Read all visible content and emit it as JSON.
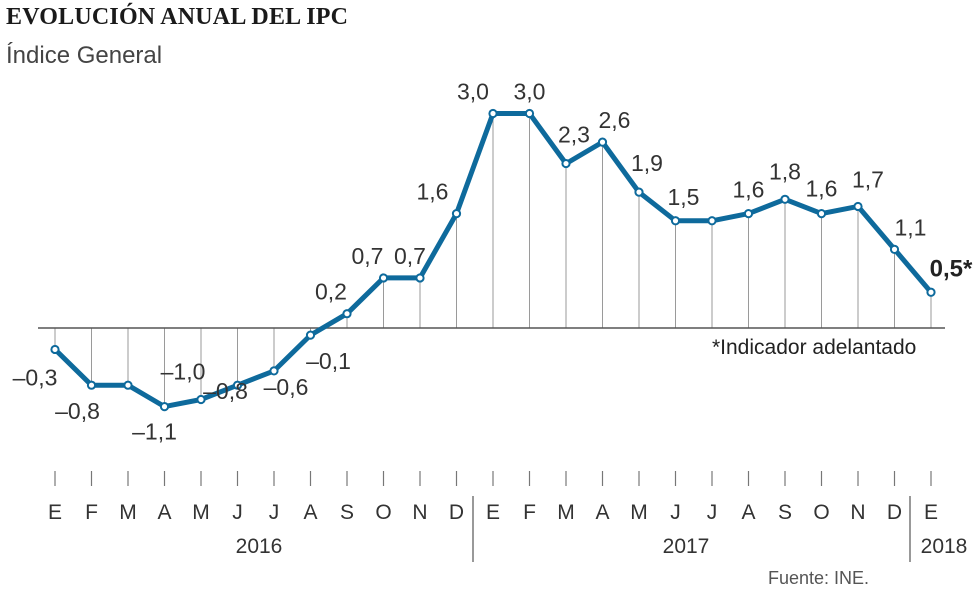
{
  "header": {
    "title": "EVOLUCIÓN ANUAL DEL IPC",
    "subtitle": "Índice General"
  },
  "footer": {
    "source": "Fuente: INE.",
    "note": "*Indicador adelantado"
  },
  "colors": {
    "line": "#0e6a9c",
    "grid": "#9a9a9a",
    "text": "#333333"
  },
  "chart_data": {
    "type": "line",
    "title": "EVOLUCIÓN ANUAL DEL IPC",
    "subtitle": "Índice General",
    "categories": [
      "E",
      "F",
      "M",
      "A",
      "M",
      "J",
      "J",
      "A",
      "S",
      "O",
      "N",
      "D",
      "E",
      "F",
      "M",
      "A",
      "M",
      "J",
      "J",
      "A",
      "S",
      "O",
      "N",
      "D",
      "E"
    ],
    "years": [
      {
        "label": "2016",
        "start": 0,
        "end": 11
      },
      {
        "label": "2017",
        "start": 12,
        "end": 23
      },
      {
        "label": "2018",
        "start": 24,
        "end": 24
      }
    ],
    "series": [
      {
        "values": [
          -0.3,
          -0.8,
          -0.8,
          -1.1,
          -1.0,
          -0.8,
          -0.6,
          -0.1,
          0.2,
          0.7,
          0.7,
          1.6,
          3.0,
          3.0,
          2.3,
          2.6,
          1.9,
          1.5,
          1.5,
          1.6,
          1.8,
          1.6,
          1.7,
          1.1,
          0.5
        ],
        "labels": [
          "–0,3",
          "–0,8",
          "",
          "–1,1",
          "–1,0",
          "–0,8",
          "–0,6",
          "–0,1",
          "0,2",
          "0,7",
          "0,7",
          "1,6",
          "3,0",
          "3,0",
          "2,3",
          "2,6",
          "1,9",
          "1,5",
          "",
          "1,6",
          "1,8",
          "1,6",
          "1,7",
          "1,1",
          "0,5*"
        ]
      }
    ],
    "ylim": [
      -1.3,
      3.2
    ],
    "grid": false
  }
}
